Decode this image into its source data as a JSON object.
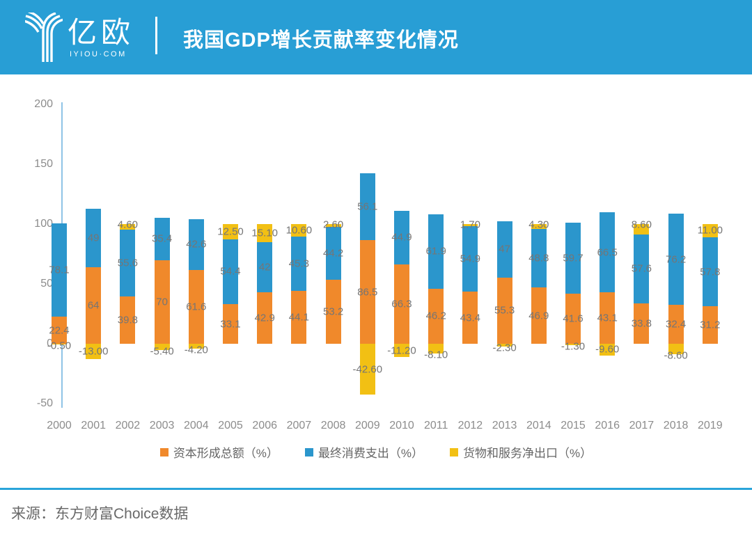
{
  "header": {
    "logo_text": "亿欧",
    "logo_sub": "IYIOU·COM",
    "title": "我国GDP增长贡献率变化情况"
  },
  "chart_data": {
    "type": "bar",
    "stacked": true,
    "title": "我国GDP增长贡献率变化情况",
    "categories": [
      "2000",
      "2001",
      "2002",
      "2003",
      "2004",
      "2005",
      "2006",
      "2007",
      "2008",
      "2009",
      "2010",
      "2011",
      "2012",
      "2013",
      "2014",
      "2015",
      "2016",
      "2017",
      "2018",
      "2019"
    ],
    "series": [
      {
        "name": "资本形成总额（%）",
        "color": "#F0892B",
        "label_format": "plain",
        "values": [
          22.4,
          64,
          39.8,
          70,
          61.6,
          33.1,
          42.9,
          44.1,
          53.2,
          86.5,
          66.3,
          46.2,
          43.4,
          55.3,
          46.9,
          41.6,
          43.1,
          33.8,
          32.4,
          31.2
        ]
      },
      {
        "name": "最终消费支出（%）",
        "color": "#2B96CC",
        "label_format": "plain",
        "values": [
          78.1,
          49,
          55.6,
          35.4,
          42.6,
          54.4,
          42,
          45.3,
          44.2,
          56.1,
          44.9,
          61.9,
          54.9,
          47,
          48.8,
          59.7,
          66.5,
          57.6,
          76.2,
          57.8
        ]
      },
      {
        "name": "货物和服务净出口（%）",
        "color": "#F2C014",
        "label_format": "fixed2",
        "values": [
          -0.5,
          -13,
          4.6,
          -5.4,
          -4.2,
          12.5,
          15.1,
          10.6,
          2.6,
          -42.6,
          -11.2,
          -8.1,
          1.7,
          -2.3,
          4.3,
          -1.3,
          -9.6,
          8.6,
          -8.6,
          11
        ]
      }
    ],
    "y_ticks": [
      200,
      150,
      100,
      50,
      0,
      -50
    ],
    "ylim": [
      -50,
      200
    ],
    "grid": false,
    "legend_position": "bottom",
    "label_color": "#757575"
  },
  "footer": {
    "source": "来源：东方财富Choice数据"
  }
}
